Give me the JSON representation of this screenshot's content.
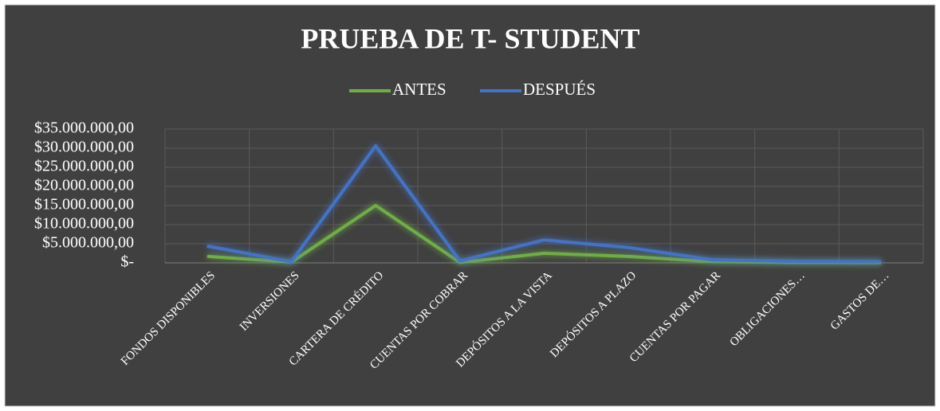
{
  "chart_data": {
    "type": "line",
    "title": "PRUEBA DE T- STUDENT",
    "categories": [
      "FONDOS DISPONIBLES",
      "INVERSIONES",
      "CARTERA DE CRÉDITO",
      "CUENTAS POR COBRAR",
      "DEPÓSITOS A LA VISTA",
      "DEPÓSITOS A PLAZO",
      "CUENTAS POR PAGAR",
      "OBLIGACIONES…",
      "GASTOS DE…"
    ],
    "series": [
      {
        "name": "ANTES",
        "color": "#70ad47",
        "values": [
          1700000,
          200000,
          15000000,
          100000,
          2500000,
          1700000,
          300000,
          100000,
          50000
        ]
      },
      {
        "name": "DESPUÉS",
        "color": "#4472c4",
        "values": [
          4400000,
          300000,
          30600000,
          500000,
          6000000,
          4000000,
          800000,
          400000,
          300000
        ]
      }
    ],
    "ylim": [
      0,
      35000000
    ],
    "yticks": [
      {
        "value": 0,
        "label": "$-"
      },
      {
        "value": 5000000,
        "label": "$5.000.000,00"
      },
      {
        "value": 10000000,
        "label": "$10.000.000,00"
      },
      {
        "value": 15000000,
        "label": "$15.000.000,00"
      },
      {
        "value": 20000000,
        "label": "$20.000.000,00"
      },
      {
        "value": 25000000,
        "label": "$25.000.000,00"
      },
      {
        "value": 30000000,
        "label": "$30.000.000,00"
      },
      {
        "value": 35000000,
        "label": "$35.000.000,00"
      }
    ],
    "grid": true,
    "legend": "top"
  }
}
